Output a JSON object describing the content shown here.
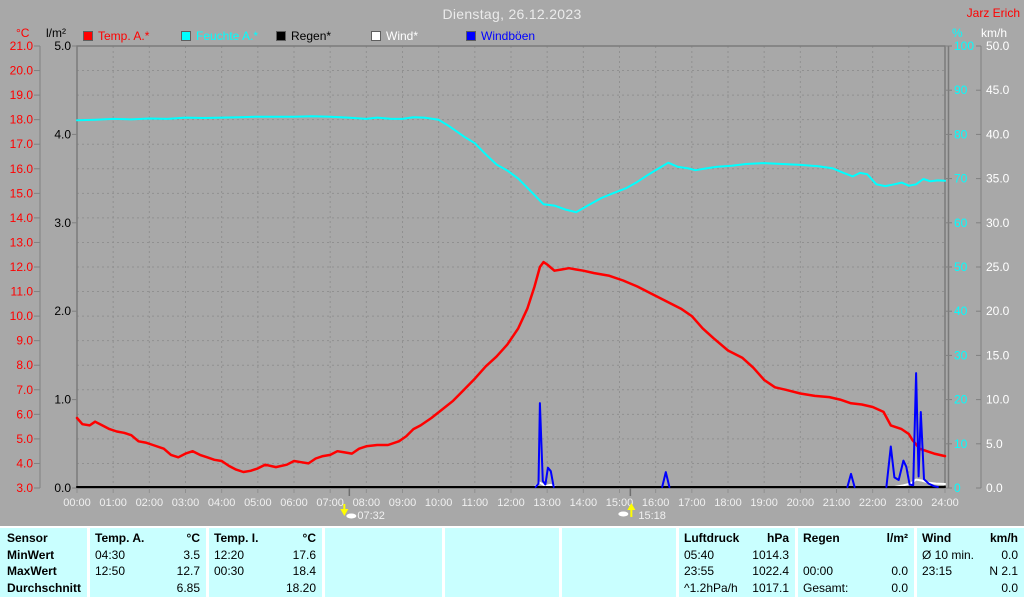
{
  "header": {
    "title": "Dienstag, 26.12.2023",
    "owner": "Jarz Erich"
  },
  "axis_units": {
    "temp": "°C",
    "rain": "l/m²",
    "humidity": "%",
    "wind": "km/h"
  },
  "legend": {
    "items": [
      {
        "key": "temp",
        "label": "Temp. A.*",
        "color": "#ff0000"
      },
      {
        "key": "humidity",
        "label": "Feuchte A.*",
        "color": "#00ffff"
      },
      {
        "key": "rain",
        "label": "Regen*",
        "color": "#000000"
      },
      {
        "key": "wind",
        "label": "Wind*",
        "color": "#ffffff"
      },
      {
        "key": "gusts",
        "label": "Windböen",
        "color": "#0000ff"
      }
    ]
  },
  "chart_data": {
    "type": "line",
    "title": "Dienstag, 26.12.2023",
    "x_axis": {
      "min": 0,
      "max": 24,
      "tick_hours": 1,
      "label_format": "HH:00"
    },
    "y_axes": {
      "temp": {
        "unit": "°C",
        "color": "#ff0000",
        "min": 3,
        "max": 21,
        "step": 1,
        "decimals": 1
      },
      "rain": {
        "unit": "l/m²",
        "color": "#000000",
        "min": 0,
        "max": 5,
        "step": 1,
        "decimals": 1
      },
      "humidity": {
        "unit": "%",
        "color": "#00ffff",
        "min": 0,
        "max": 100,
        "step": 10,
        "decimals": 0
      },
      "wind": {
        "unit": "km/h",
        "color": "#ffffff",
        "min": 0,
        "max": 50,
        "step": 5,
        "decimals": 1
      }
    },
    "series": [
      {
        "name": "Feuchte A.*",
        "axis": "humidity",
        "color": "#00ffff",
        "width": 2,
        "points": [
          [
            0,
            83.2
          ],
          [
            0.5,
            83.3
          ],
          [
            1,
            83.5
          ],
          [
            1.5,
            83.4
          ],
          [
            2,
            83.6
          ],
          [
            2.5,
            83.5
          ],
          [
            3,
            83.8
          ],
          [
            3.5,
            83.7
          ],
          [
            4,
            83.8
          ],
          [
            4.5,
            83.9
          ],
          [
            5,
            84.0
          ],
          [
            5.5,
            84.0
          ],
          [
            6,
            84.0
          ],
          [
            6.5,
            84.1
          ],
          [
            7,
            84.0
          ],
          [
            7.5,
            83.8
          ],
          [
            8,
            83.5
          ],
          [
            8.3,
            83.8
          ],
          [
            8.7,
            83.5
          ],
          [
            9,
            83.5
          ],
          [
            9.3,
            83.9
          ],
          [
            9.6,
            83.8
          ],
          [
            10,
            83.3
          ],
          [
            10.3,
            81.8
          ],
          [
            10.7,
            79.5
          ],
          [
            11,
            78.0
          ],
          [
            11.3,
            75.5
          ],
          [
            11.6,
            73.2
          ],
          [
            11.9,
            71.8
          ],
          [
            12.2,
            70.0
          ],
          [
            12.5,
            67.5
          ],
          [
            12.9,
            64.2
          ],
          [
            13.2,
            63.9
          ],
          [
            13.5,
            63.0
          ],
          [
            13.8,
            62.4
          ],
          [
            14.1,
            63.8
          ],
          [
            14.5,
            65.6
          ],
          [
            14.8,
            66.6
          ],
          [
            15.2,
            67.9
          ],
          [
            15.5,
            69.3
          ],
          [
            15.8,
            70.9
          ],
          [
            16.1,
            72.4
          ],
          [
            16.35,
            73.6
          ],
          [
            16.6,
            72.7
          ],
          [
            16.9,
            72.3
          ],
          [
            17.1,
            71.9
          ],
          [
            17.4,
            72.3
          ],
          [
            17.7,
            72.7
          ],
          [
            18.1,
            72.9
          ],
          [
            18.5,
            73.3
          ],
          [
            19.0,
            73.5
          ],
          [
            19.5,
            73.3
          ],
          [
            20.0,
            73.1
          ],
          [
            20.5,
            72.8
          ],
          [
            20.9,
            72.3
          ],
          [
            21.2,
            71.3
          ],
          [
            21.45,
            70.5
          ],
          [
            21.65,
            71.3
          ],
          [
            21.85,
            71.0
          ],
          [
            22.1,
            68.7
          ],
          [
            22.35,
            68.3
          ],
          [
            22.6,
            68.7
          ],
          [
            22.8,
            69.1
          ],
          [
            23.0,
            68.4
          ],
          [
            23.2,
            68.7
          ],
          [
            23.4,
            69.9
          ],
          [
            23.6,
            69.4
          ],
          [
            23.8,
            69.6
          ],
          [
            24,
            69.5
          ]
        ]
      },
      {
        "name": "Temp. A.*",
        "axis": "temp",
        "color": "#ff0000",
        "width": 2.5,
        "points": [
          [
            0,
            5.85
          ],
          [
            0.15,
            5.6
          ],
          [
            0.35,
            5.55
          ],
          [
            0.5,
            5.7
          ],
          [
            0.7,
            5.55
          ],
          [
            0.9,
            5.4
          ],
          [
            1.1,
            5.3
          ],
          [
            1.3,
            5.25
          ],
          [
            1.5,
            5.15
          ],
          [
            1.7,
            4.9
          ],
          [
            1.9,
            4.85
          ],
          [
            2.1,
            4.75
          ],
          [
            2.4,
            4.6
          ],
          [
            2.6,
            4.35
          ],
          [
            2.8,
            4.25
          ],
          [
            3.0,
            4.4
          ],
          [
            3.2,
            4.5
          ],
          [
            3.4,
            4.35
          ],
          [
            3.6,
            4.25
          ],
          [
            3.8,
            4.15
          ],
          [
            4.0,
            4.1
          ],
          [
            4.2,
            3.9
          ],
          [
            4.4,
            3.75
          ],
          [
            4.6,
            3.65
          ],
          [
            4.8,
            3.7
          ],
          [
            5.0,
            3.8
          ],
          [
            5.2,
            3.95
          ],
          [
            5.5,
            3.85
          ],
          [
            5.8,
            3.95
          ],
          [
            6.0,
            4.1
          ],
          [
            6.2,
            4.05
          ],
          [
            6.4,
            4.0
          ],
          [
            6.6,
            4.2
          ],
          [
            6.8,
            4.3
          ],
          [
            7.0,
            4.35
          ],
          [
            7.2,
            4.5
          ],
          [
            7.4,
            4.45
          ],
          [
            7.6,
            4.4
          ],
          [
            7.8,
            4.6
          ],
          [
            8.0,
            4.7
          ],
          [
            8.3,
            4.75
          ],
          [
            8.6,
            4.75
          ],
          [
            8.9,
            4.9
          ],
          [
            9.1,
            5.1
          ],
          [
            9.3,
            5.4
          ],
          [
            9.5,
            5.55
          ],
          [
            9.8,
            5.85
          ],
          [
            10.1,
            6.2
          ],
          [
            10.4,
            6.55
          ],
          [
            10.7,
            7.0
          ],
          [
            11.0,
            7.45
          ],
          [
            11.3,
            7.95
          ],
          [
            11.6,
            8.35
          ],
          [
            11.9,
            8.85
          ],
          [
            12.2,
            9.5
          ],
          [
            12.45,
            10.3
          ],
          [
            12.65,
            11.2
          ],
          [
            12.8,
            12.0
          ],
          [
            12.9,
            12.2
          ],
          [
            13.0,
            12.1
          ],
          [
            13.2,
            11.85
          ],
          [
            13.4,
            11.9
          ],
          [
            13.6,
            11.95
          ],
          [
            13.8,
            11.9
          ],
          [
            14.0,
            11.85
          ],
          [
            14.3,
            11.75
          ],
          [
            14.7,
            11.65
          ],
          [
            15.1,
            11.45
          ],
          [
            15.5,
            11.2
          ],
          [
            15.9,
            10.9
          ],
          [
            16.3,
            10.6
          ],
          [
            16.7,
            10.3
          ],
          [
            17.0,
            10.0
          ],
          [
            17.3,
            9.5
          ],
          [
            17.6,
            9.1
          ],
          [
            18.0,
            8.6
          ],
          [
            18.4,
            8.3
          ],
          [
            18.7,
            7.9
          ],
          [
            19.0,
            7.4
          ],
          [
            19.3,
            7.1
          ],
          [
            19.6,
            7.0
          ],
          [
            20.0,
            6.85
          ],
          [
            20.4,
            6.75
          ],
          [
            20.8,
            6.7
          ],
          [
            21.1,
            6.6
          ],
          [
            21.4,
            6.45
          ],
          [
            21.7,
            6.4
          ],
          [
            22.0,
            6.3
          ],
          [
            22.3,
            6.1
          ],
          [
            22.5,
            5.55
          ],
          [
            22.8,
            5.4
          ],
          [
            23.0,
            5.2
          ],
          [
            23.1,
            4.95
          ],
          [
            23.3,
            4.6
          ],
          [
            23.5,
            4.5
          ],
          [
            23.7,
            4.4
          ],
          [
            24,
            4.3
          ]
        ]
      },
      {
        "name": "Wind*",
        "axis": "wind",
        "color": "#ffffff",
        "width": 2,
        "segments": [
          [
            [
              12.65,
              0
            ],
            [
              12.8,
              0.6
            ],
            [
              12.95,
              0.25
            ],
            [
              13.1,
              0.35
            ],
            [
              13.25,
              0
            ]
          ],
          [
            [
              22.6,
              0
            ],
            [
              22.85,
              0.3
            ],
            [
              23.05,
              0.5
            ],
            [
              23.2,
              0.95
            ],
            [
              23.35,
              0.85
            ],
            [
              23.55,
              0.6
            ],
            [
              23.75,
              0.5
            ],
            [
              24,
              0.45
            ]
          ]
        ]
      },
      {
        "name": "Regen*",
        "axis": "rain",
        "color": "#000000",
        "width": 2,
        "points": [
          [
            0,
            0
          ],
          [
            24,
            0
          ]
        ]
      },
      {
        "name": "Windböen",
        "axis": "wind",
        "color": "#0000ff",
        "width": 2,
        "segments": [
          [
            [
              12.68,
              0
            ],
            [
              12.76,
              0.5
            ],
            [
              12.8,
              9.6
            ],
            [
              12.84,
              5.0
            ],
            [
              12.88,
              0.8
            ],
            [
              12.95,
              0.4
            ],
            [
              13.02,
              2.3
            ],
            [
              13.1,
              1.9
            ],
            [
              13.18,
              0
            ]
          ],
          [
            [
              16.18,
              0
            ],
            [
              16.28,
              1.8
            ],
            [
              16.38,
              0
            ]
          ],
          [
            [
              21.3,
              0
            ],
            [
              21.4,
              1.6
            ],
            [
              21.5,
              0
            ]
          ],
          [
            [
              22.38,
              0
            ],
            [
              22.5,
              4.7
            ],
            [
              22.6,
              1.2
            ],
            [
              22.72,
              0.9
            ],
            [
              22.85,
              3.1
            ],
            [
              22.93,
              2.4
            ],
            [
              23.02,
              0.4
            ],
            [
              23.12,
              0.3
            ],
            [
              23.2,
              13.0
            ],
            [
              23.27,
              1.3
            ],
            [
              23.33,
              8.6
            ],
            [
              23.42,
              1.0
            ],
            [
              23.55,
              0.5
            ],
            [
              23.7,
              0.2
            ],
            [
              23.8,
              0
            ]
          ]
        ]
      }
    ],
    "sun_markers": [
      {
        "label": "07:32",
        "hours": 7.53,
        "type": "sunrise"
      },
      {
        "label": "15:18",
        "hours": 15.3,
        "type": "sunset"
      }
    ]
  },
  "table": {
    "row_labels": [
      "Sensor",
      "MinWert",
      "MaxWert",
      "Durchschnitt"
    ],
    "columns": [
      {
        "name": "Temp. A.",
        "unit": "°C",
        "rows": [
          [
            "04:30",
            "3.5"
          ],
          [
            "12:50",
            "12.7"
          ],
          [
            "",
            "6.85"
          ]
        ]
      },
      {
        "name": "Temp. I.",
        "unit": "°C",
        "rows": [
          [
            "12:20",
            "17.6"
          ],
          [
            "00:30",
            "18.4"
          ],
          [
            "",
            "18.20"
          ]
        ]
      },
      {
        "name": "",
        "unit": "",
        "rows": [
          [
            "",
            ""
          ],
          [
            "",
            ""
          ],
          [
            "",
            ""
          ]
        ]
      },
      {
        "name": "",
        "unit": "",
        "rows": [
          [
            "",
            ""
          ],
          [
            "",
            ""
          ],
          [
            "",
            ""
          ]
        ]
      },
      {
        "name": "",
        "unit": "",
        "rows": [
          [
            "",
            ""
          ],
          [
            "",
            ""
          ],
          [
            "",
            ""
          ]
        ]
      },
      {
        "name": "Luftdruck",
        "unit": "hPa",
        "rows": [
          [
            "05:40",
            "1014.3"
          ],
          [
            "23:55",
            "1022.4"
          ],
          [
            "^1.2hPa/h",
            "1017.1"
          ]
        ]
      },
      {
        "name": "Regen",
        "unit": "l/m²",
        "rows": [
          [
            "",
            ""
          ],
          [
            "00:00",
            "0.0"
          ],
          [
            "Gesamt:",
            "0.0"
          ]
        ]
      },
      {
        "name": "Wind",
        "unit": "km/h",
        "rows": [
          [
            "Ø 10 min.",
            "0.0"
          ],
          [
            "23:15",
            "N 2.1"
          ],
          [
            "",
            "0.0"
          ]
        ]
      }
    ]
  }
}
